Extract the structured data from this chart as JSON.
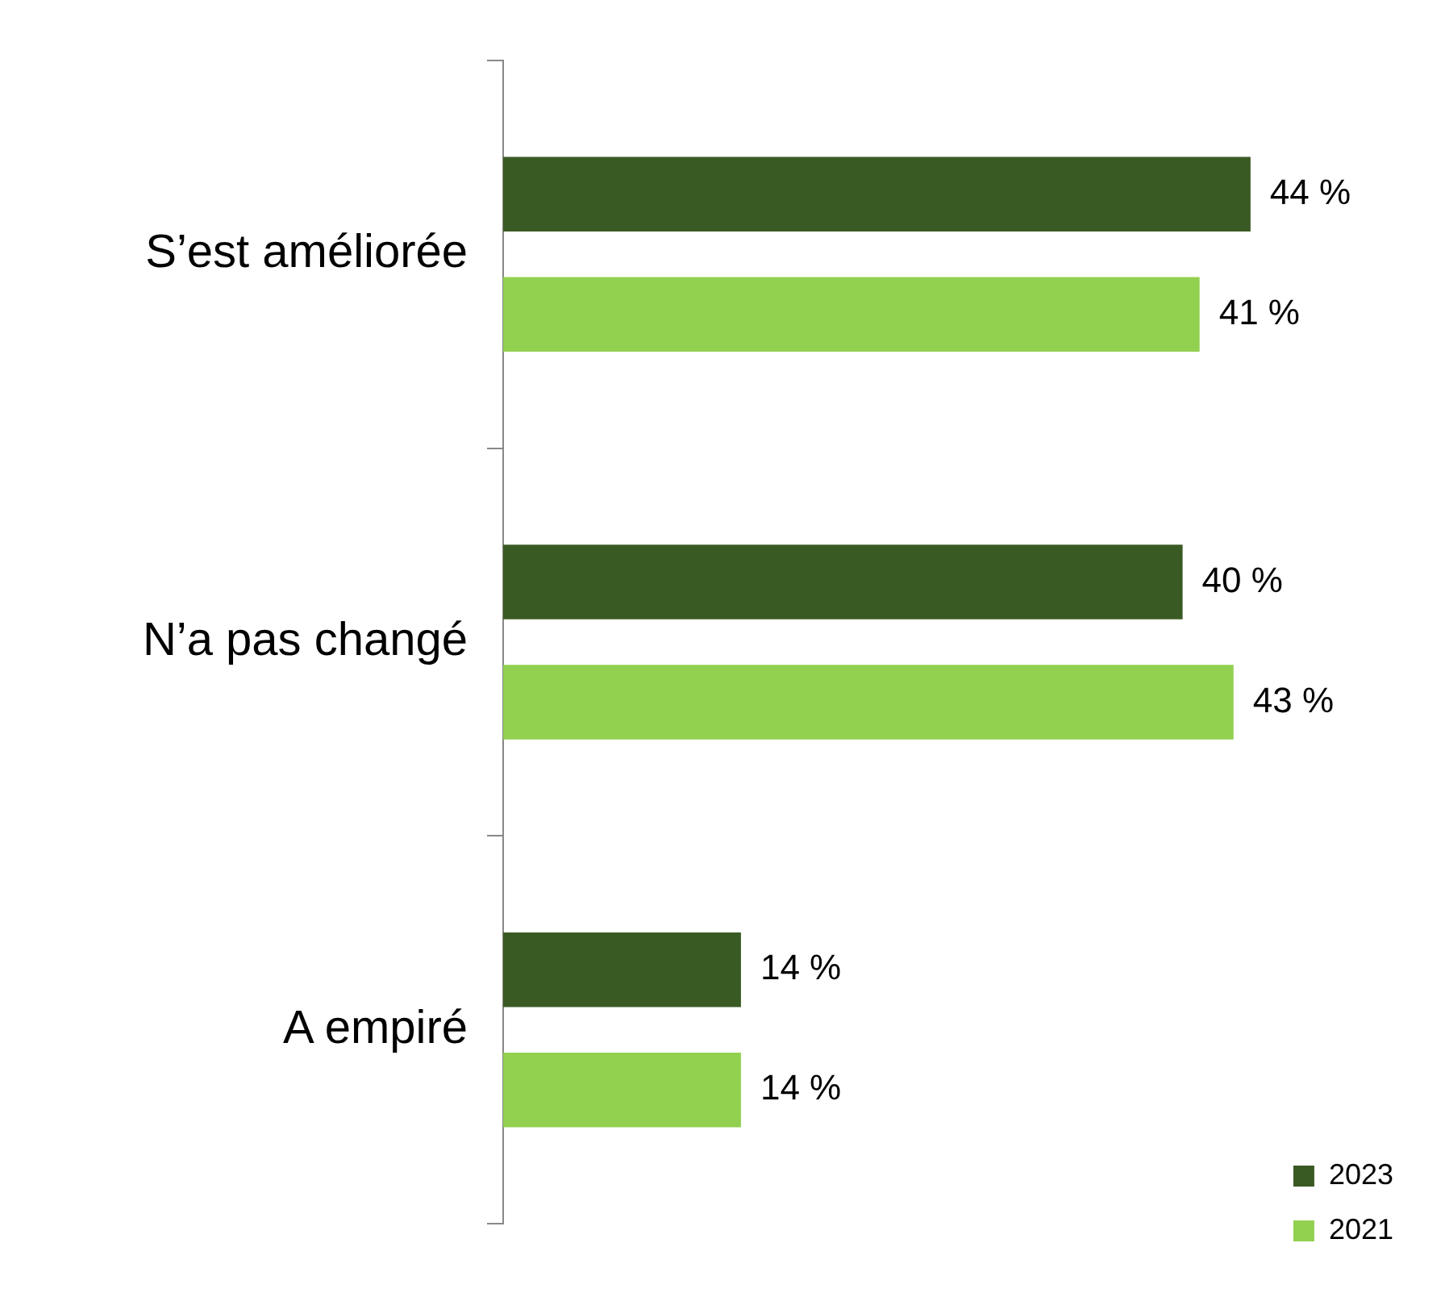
{
  "chart_data": {
    "type": "bar",
    "orientation": "horizontal",
    "categories": [
      "S’est améliorée",
      "N’a pas changé",
      "A empiré"
    ],
    "series": [
      {
        "name": "2023",
        "color": "#3a5a24",
        "values": [
          44,
          40,
          14
        ],
        "value_labels": [
          "44 %",
          "40 %",
          "14 %"
        ]
      },
      {
        "name": "2021",
        "color": "#92d050",
        "values": [
          41,
          43,
          14
        ],
        "value_labels": [
          "41 %",
          "43 %",
          "14 %"
        ]
      }
    ],
    "legend": "bottom right"
  }
}
